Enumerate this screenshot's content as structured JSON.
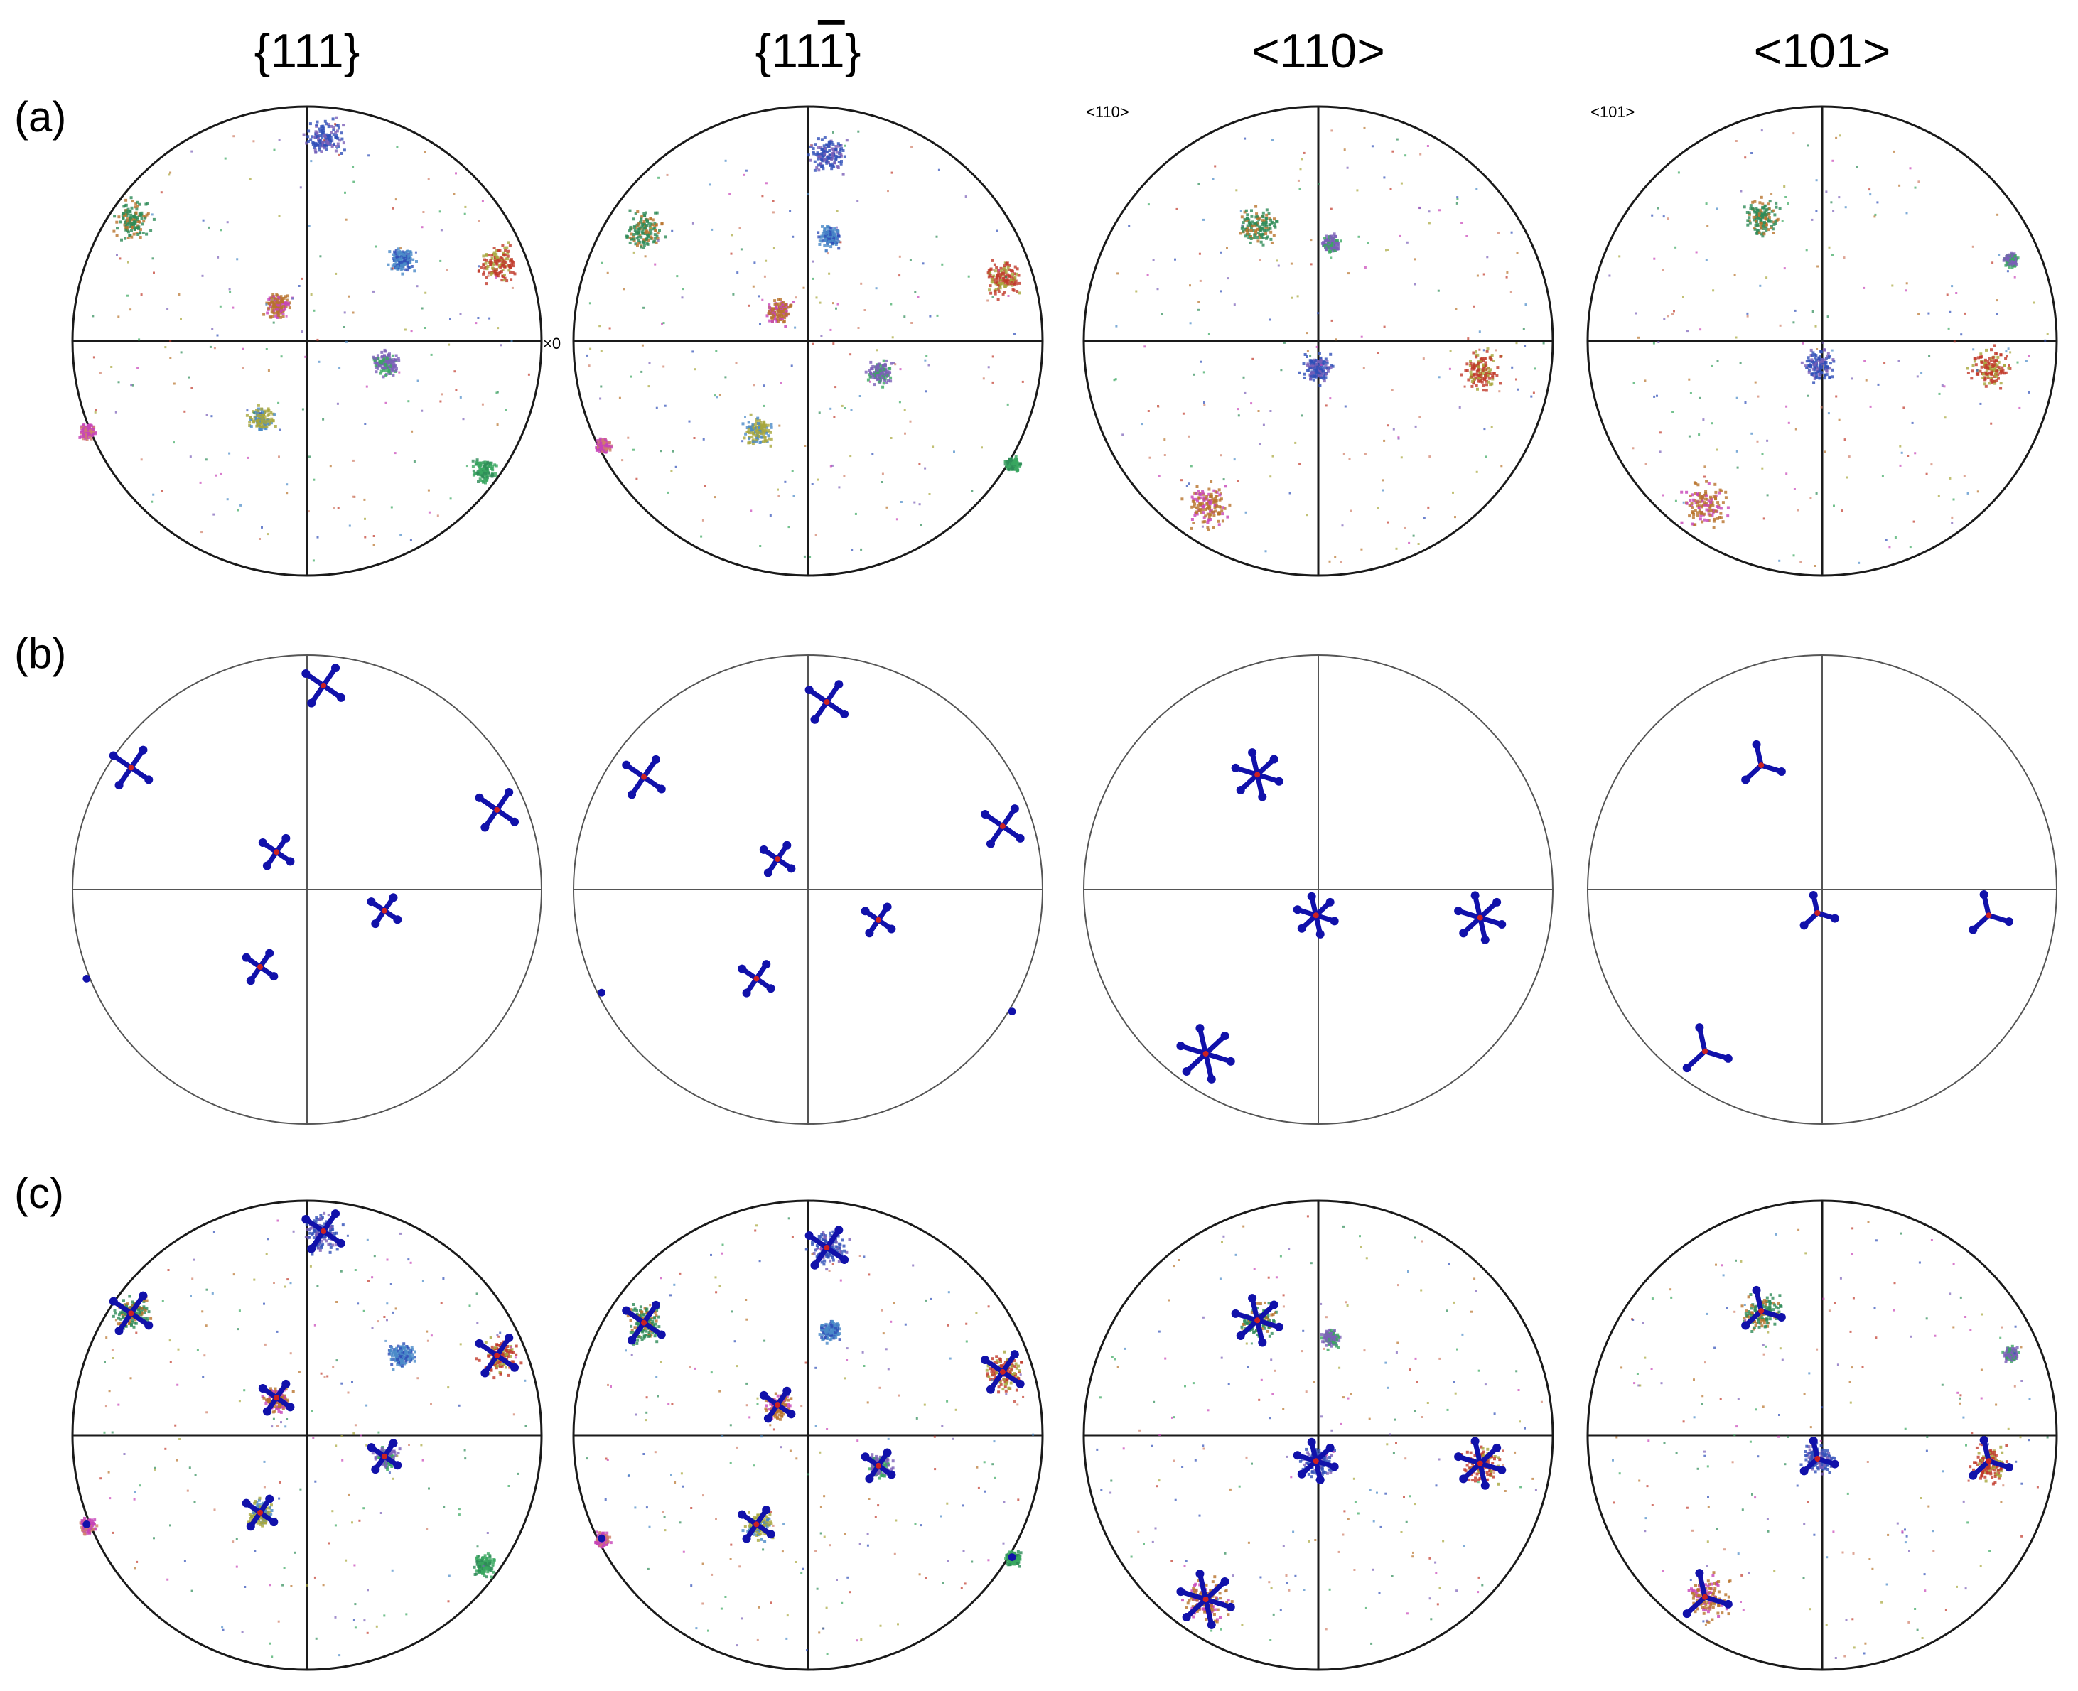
{
  "columns": [
    {
      "pre": "{11",
      "bar": "",
      "post": "1}"
    },
    {
      "pre": "{11",
      "bar": "1",
      "post": "}"
    },
    {
      "pre": "<110>",
      "bar": "",
      "post": ""
    },
    {
      "pre": "<101>",
      "bar": "",
      "post": ""
    }
  ],
  "rows": [
    "(a)",
    "(b)",
    "(c)"
  ],
  "corner_labels": {
    "x0": "×0",
    "c3": "<110>",
    "c4": "<101>"
  },
  "colors": {
    "outline": "#1a1a1a",
    "simulated": "#1111aa",
    "simulated_center": "#cc2222",
    "experimental": [
      "#2e8b57",
      "#2f4fb8",
      "#c0392b",
      "#b8732c",
      "#7a5fb8",
      "#a8a63c",
      "#c744b8",
      "#3aa860",
      "#4a8ac8",
      "#d0806a"
    ]
  },
  "clusters": [
    [
      [
        -0.75,
        0.52,
        1.0,
        "s4"
      ],
      [
        0.07,
        0.87,
        1.0,
        "s4"
      ],
      [
        0.81,
        0.34,
        1.0,
        "s4"
      ],
      [
        -0.13,
        0.16,
        0.7,
        "s4"
      ],
      [
        0.33,
        -0.09,
        0.65,
        "s4"
      ],
      [
        -0.2,
        -0.33,
        0.7,
        "s4"
      ],
      [
        -0.94,
        -0.38,
        0.4,
        "dot"
      ],
      [
        0.75,
        -0.55,
        0.6,
        "exp"
      ],
      [
        0.4,
        0.35,
        0.7,
        "exp"
      ]
    ],
    [
      [
        -0.7,
        0.48,
        1.0,
        "s4"
      ],
      [
        0.08,
        0.8,
        1.0,
        "s4"
      ],
      [
        0.83,
        0.27,
        1.0,
        "s4"
      ],
      [
        -0.13,
        0.13,
        0.7,
        "s4"
      ],
      [
        0.3,
        -0.13,
        0.65,
        "s4"
      ],
      [
        -0.22,
        -0.38,
        0.75,
        "s4"
      ],
      [
        -0.88,
        -0.44,
        0.4,
        "dot"
      ],
      [
        0.87,
        -0.52,
        0.4,
        "dot"
      ],
      [
        0.09,
        0.45,
        0.6,
        "exp"
      ]
    ],
    [
      [
        -0.26,
        0.49,
        1.0,
        "s6"
      ],
      [
        -0.01,
        -0.11,
        0.8,
        "s6"
      ],
      [
        0.69,
        -0.12,
        1.0,
        "s6"
      ],
      [
        -0.48,
        -0.7,
        1.2,
        "s6"
      ],
      [
        0.05,
        0.42,
        0.5,
        "exp"
      ]
    ],
    [
      [
        -0.26,
        0.53,
        1.0,
        "s3"
      ],
      [
        -0.02,
        -0.1,
        0.8,
        "s3"
      ],
      [
        0.71,
        -0.11,
        1.0,
        "s3"
      ],
      [
        -0.5,
        -0.69,
        1.2,
        "s3"
      ],
      [
        0.8,
        0.35,
        0.4,
        "exp"
      ]
    ]
  ]
}
